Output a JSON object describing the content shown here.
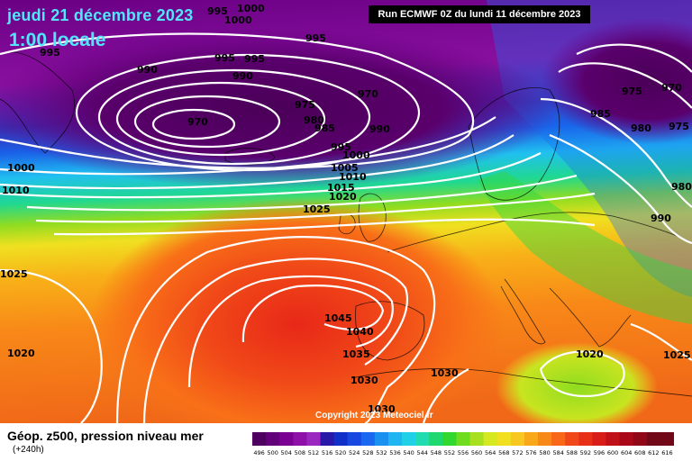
{
  "header": {
    "date": "jeudi 21 décembre 2023",
    "local_time": "1:00 locale",
    "run": "Run ECMWF 0Z du lundi 11 décembre 2023"
  },
  "copyright": "Copyright 2023 Meteociel.fr",
  "footer": {
    "title": "Géop. z500, pression niveau mer",
    "subtitle": "(+240h)"
  },
  "legend": {
    "values": [
      "496",
      "500",
      "504",
      "508",
      "512",
      "516",
      "520",
      "524",
      "528",
      "532",
      "536",
      "540",
      "544",
      "548",
      "552",
      "556",
      "560",
      "564",
      "568",
      "572",
      "576",
      "580",
      "584",
      "588",
      "592",
      "596",
      "600",
      "604",
      "608",
      "612",
      "616"
    ],
    "colors": [
      "#4e0060",
      "#62007a",
      "#7a0094",
      "#8e10a8",
      "#9a28c0",
      "#2a18a8",
      "#1030c8",
      "#1848e0",
      "#1a68f0",
      "#1a90f0",
      "#20b4f0",
      "#20d0e6",
      "#20dcb0",
      "#20d870",
      "#30d830",
      "#70dc20",
      "#a8e020",
      "#d6e820",
      "#f0e020",
      "#f8c820",
      "#f8a818",
      "#f88818",
      "#f86818",
      "#f04818",
      "#e83018",
      "#d81c18",
      "#c01018",
      "#a80818",
      "#900818",
      "#700818"
    ]
  },
  "isobar_labels": [
    "995",
    "1000",
    "1000",
    "995",
    "995",
    "995",
    "990",
    "990",
    "970",
    "975",
    "980",
    "985",
    "990",
    "970",
    "995",
    "1000",
    "1005",
    "1010",
    "1015",
    "1020",
    "1025",
    "975",
    "970",
    "985",
    "980",
    "975",
    "980",
    "990",
    "995",
    "1000",
    "1010",
    "1025",
    "1045",
    "1040",
    "1035",
    "1030",
    "1030",
    "1030",
    "1020",
    "1020",
    "1025"
  ]
}
